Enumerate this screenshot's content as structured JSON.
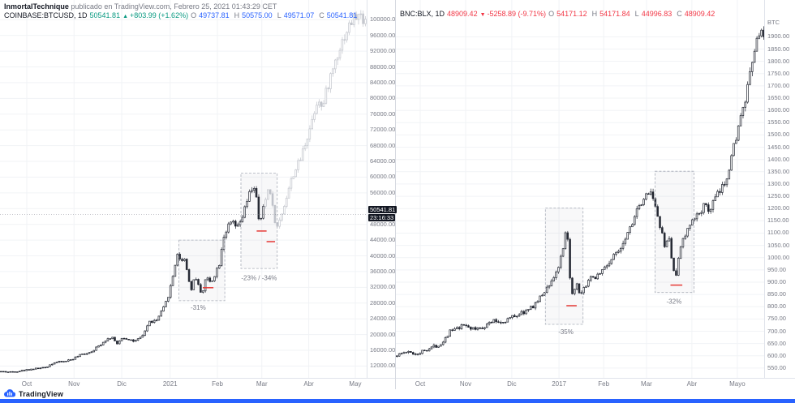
{
  "publisher": {
    "name": "InmortalTechnique",
    "suffix": " publicado en TradingView.com, Febrero 25, 2021 01:43:29 CET"
  },
  "footer": {
    "brand": "TradingView"
  },
  "colors": {
    "accent": "#2962ff",
    "up": "#089981",
    "down": "#f23645",
    "text": "#131722",
    "muted": "#787b86",
    "annotation_red": "#e53935"
  },
  "chart_data": [
    {
      "type": "candlestick",
      "symbol": "COINBASE:BTCUSD",
      "timeframe": "1D",
      "legend": {
        "symbol": "COINBASE:BTCUSD, 1D",
        "price": "50541.81",
        "arrow": "▲",
        "change": "+803.99 (+1.62%)",
        "change_color": "#089981",
        "ohlc_color": "#2962ff",
        "ohlc": [
          {
            "k": "O",
            "v": "49737.81"
          },
          {
            "k": "H",
            "v": "50575.00"
          },
          {
            "k": "L",
            "v": "49571.07"
          },
          {
            "k": "C",
            "v": "50541.81"
          }
        ]
      },
      "y_min": 9000,
      "y_max": 105000,
      "y_ticks": [
        "100000.00",
        "96000.00",
        "92000.00",
        "88000.00",
        "84000.00",
        "80000.00",
        "76000.00",
        "72000.00",
        "68000.00",
        "64000.00",
        "60000.00",
        "56000.00",
        "52000.00",
        "48000.00",
        "44000.00",
        "40000.00",
        "36000.00",
        "32000.00",
        "28000.00",
        "24000.00",
        "20000.00",
        "16000.00",
        "12000.00"
      ],
      "x_labels": [
        {
          "label": "Oct",
          "t": 0.073
        },
        {
          "label": "Nov",
          "t": 0.202
        },
        {
          "label": "Dic",
          "t": 0.332
        },
        {
          "label": "2021",
          "t": 0.464
        },
        {
          "label": "Feb",
          "t": 0.593
        },
        {
          "label": "Mar",
          "t": 0.714
        },
        {
          "label": "Abr",
          "t": 0.842
        },
        {
          "label": "May",
          "t": 0.969
        }
      ],
      "price_line": {
        "value": 50541.81,
        "label": "50541.81",
        "countdown": "23:16:33"
      },
      "faded_from_t": 0.72,
      "candles": 158,
      "seed": 42,
      "volatility": 0.016,
      "anchors": [
        [
          0.0,
          10650
        ],
        [
          0.03,
          10480
        ],
        [
          0.06,
          10800
        ],
        [
          0.095,
          11300
        ],
        [
          0.125,
          11550
        ],
        [
          0.15,
          12900
        ],
        [
          0.175,
          13100
        ],
        [
          0.2,
          13750
        ],
        [
          0.225,
          14900
        ],
        [
          0.25,
          15600
        ],
        [
          0.27,
          16900
        ],
        [
          0.29,
          18600
        ],
        [
          0.31,
          19400
        ],
        [
          0.322,
          17300
        ],
        [
          0.335,
          19200
        ],
        [
          0.355,
          18900
        ],
        [
          0.37,
          18200
        ],
        [
          0.39,
          19300
        ],
        [
          0.41,
          23200
        ],
        [
          0.43,
          23500
        ],
        [
          0.45,
          26800
        ],
        [
          0.46,
          29200
        ],
        [
          0.472,
          33500
        ],
        [
          0.487,
          40800
        ],
        [
          0.495,
          38500
        ],
        [
          0.505,
          39800
        ],
        [
          0.515,
          35600
        ],
        [
          0.525,
          31200
        ],
        [
          0.535,
          35400
        ],
        [
          0.545,
          32100
        ],
        [
          0.555,
          30400
        ],
        [
          0.565,
          34600
        ],
        [
          0.578,
          33200
        ],
        [
          0.59,
          35500
        ],
        [
          0.602,
          38300
        ],
        [
          0.612,
          44800
        ],
        [
          0.625,
          47300
        ],
        [
          0.638,
          48600
        ],
        [
          0.65,
          46800
        ],
        [
          0.662,
          49200
        ],
        [
          0.672,
          52200
        ],
        [
          0.684,
          55800
        ],
        [
          0.695,
          58100
        ],
        [
          0.703,
          54300
        ],
        [
          0.71,
          47800
        ],
        [
          0.718,
          50541
        ],
        [
          0.728,
          54500
        ],
        [
          0.738,
          58200
        ],
        [
          0.748,
          51500
        ],
        [
          0.758,
          46800
        ],
        [
          0.768,
          49500
        ],
        [
          0.78,
          53500
        ],
        [
          0.792,
          57500
        ],
        [
          0.806,
          61500
        ],
        [
          0.82,
          63800
        ],
        [
          0.835,
          68500
        ],
        [
          0.85,
          73000
        ],
        [
          0.862,
          77500
        ],
        [
          0.872,
          80500
        ],
        [
          0.882,
          77000
        ],
        [
          0.895,
          82500
        ],
        [
          0.908,
          86500
        ],
        [
          0.92,
          90500
        ],
        [
          0.934,
          94000
        ],
        [
          0.948,
          97000
        ],
        [
          0.962,
          99500
        ],
        [
          0.976,
          101000
        ],
        [
          1.0,
          100200
        ]
      ],
      "annotations": {
        "boxes": [
          {
            "t0": 0.488,
            "t1": 0.613,
            "p0": 28600,
            "p1": 44000,
            "label": "-31%",
            "label_t": 0.52,
            "label_p": 26300
          },
          {
            "t0": 0.657,
            "t1": 0.756,
            "p0": 36800,
            "p1": 61000,
            "label": "-23% / -34%",
            "label_t": 0.658,
            "label_p": 33800
          }
        ],
        "red_lines": [
          {
            "t0": 0.553,
            "t1": 0.582,
            "p": 31900
          },
          {
            "t0": 0.7,
            "t1": 0.727,
            "p": 46300
          },
          {
            "t0": 0.727,
            "t1": 0.75,
            "p": 43600
          }
        ]
      }
    },
    {
      "type": "candlestick",
      "symbol": "BNC:BLX",
      "timeframe": "1D",
      "legend": {
        "symbol": "BNC:BLX, 1D",
        "price": "48909.42",
        "arrow": "▼",
        "change": "-5258.89 (-9.71%)",
        "change_color": "#f23645",
        "ohlc_color": "#f23645",
        "ohlc": [
          {
            "k": "O",
            "v": "54171.12"
          },
          {
            "k": "H",
            "v": "54171.84"
          },
          {
            "k": "L",
            "v": "44996.83"
          },
          {
            "k": "C",
            "v": "48909.42"
          }
        ]
      },
      "y_axis_title": "BTC",
      "y_min": 510,
      "y_max": 2050,
      "y_ticks": [
        "1900.00",
        "1850.00",
        "1800.00",
        "1750.00",
        "1700.00",
        "1650.00",
        "1600.00",
        "1550.00",
        "1500.00",
        "1450.00",
        "1400.00",
        "1350.00",
        "1300.00",
        "1250.00",
        "1200.00",
        "1150.00",
        "1100.00",
        "1050.00",
        "1000.00",
        "950.00",
        "900.00",
        "850.00",
        "800.00",
        "750.00",
        "700.00",
        "650.00",
        "600.00",
        "550.00"
      ],
      "x_labels": [
        {
          "label": "Oct",
          "t": 0.066
        },
        {
          "label": "Nov",
          "t": 0.189
        },
        {
          "label": "Dic",
          "t": 0.314
        },
        {
          "label": "2017",
          "t": 0.442
        },
        {
          "label": "Feb",
          "t": 0.563
        },
        {
          "label": "Mar",
          "t": 0.679
        },
        {
          "label": "Abr",
          "t": 0.802
        },
        {
          "label": "Mayo",
          "t": 0.925
        }
      ],
      "candles": 160,
      "seed": 1337,
      "volatility": 0.012,
      "anchors": [
        [
          0.0,
          600
        ],
        [
          0.03,
          615
        ],
        [
          0.06,
          608
        ],
        [
          0.095,
          632
        ],
        [
          0.125,
          648
        ],
        [
          0.15,
          700
        ],
        [
          0.175,
          712
        ],
        [
          0.19,
          728
        ],
        [
          0.215,
          706
        ],
        [
          0.24,
          718
        ],
        [
          0.265,
          742
        ],
        [
          0.29,
          736
        ],
        [
          0.315,
          756
        ],
        [
          0.34,
          772
        ],
        [
          0.365,
          788
        ],
        [
          0.39,
          828
        ],
        [
          0.415,
          882
        ],
        [
          0.432,
          922
        ],
        [
          0.445,
          968
        ],
        [
          0.456,
          1026
        ],
        [
          0.466,
          1128
        ],
        [
          0.474,
          940
        ],
        [
          0.483,
          822
        ],
        [
          0.492,
          902
        ],
        [
          0.502,
          836
        ],
        [
          0.512,
          868
        ],
        [
          0.524,
          908
        ],
        [
          0.54,
          918
        ],
        [
          0.558,
          942
        ],
        [
          0.575,
          968
        ],
        [
          0.595,
          1008
        ],
        [
          0.615,
          1052
        ],
        [
          0.635,
          1118
        ],
        [
          0.655,
          1186
        ],
        [
          0.675,
          1228
        ],
        [
          0.69,
          1282
        ],
        [
          0.7,
          1252
        ],
        [
          0.712,
          1158
        ],
        [
          0.722,
          1118
        ],
        [
          0.732,
          1032
        ],
        [
          0.742,
          1098
        ],
        [
          0.752,
          978
        ],
        [
          0.762,
          912
        ],
        [
          0.772,
          1042
        ],
        [
          0.784,
          1082
        ],
        [
          0.8,
          1128
        ],
        [
          0.822,
          1178
        ],
        [
          0.838,
          1212
        ],
        [
          0.852,
          1188
        ],
        [
          0.868,
          1242
        ],
        [
          0.884,
          1272
        ],
        [
          0.9,
          1332
        ],
        [
          0.914,
          1422
        ],
        [
          0.93,
          1528
        ],
        [
          0.948,
          1622
        ],
        [
          0.962,
          1735
        ],
        [
          0.976,
          1852
        ],
        [
          0.988,
          1928
        ],
        [
          1.0,
          1885
        ]
      ],
      "annotations": {
        "boxes": [
          {
            "t0": 0.405,
            "t1": 0.507,
            "p0": 728,
            "p1": 1202,
            "label": "-35%",
            "label_t": 0.44,
            "label_p": 688
          },
          {
            "t0": 0.702,
            "t1": 0.808,
            "p0": 858,
            "p1": 1352,
            "label": "-32%",
            "label_t": 0.733,
            "label_p": 812
          }
        ],
        "red_lines": [
          {
            "t0": 0.462,
            "t1": 0.49,
            "p": 804
          },
          {
            "t0": 0.744,
            "t1": 0.776,
            "p": 888
          }
        ]
      }
    }
  ]
}
